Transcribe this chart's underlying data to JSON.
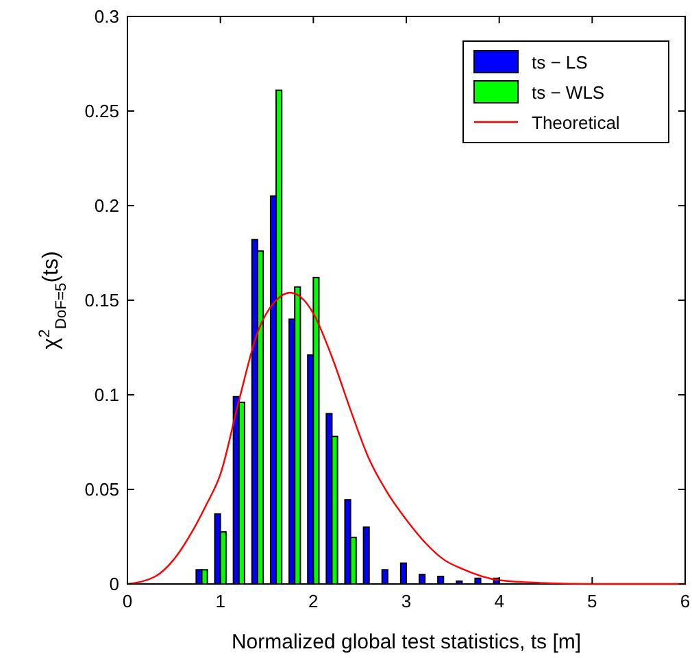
{
  "chart_data": {
    "type": "bar",
    "xlabel": "Normalized global test statistics, ts [m]",
    "ylabel": "χ$^{2}$$_{DoF=5}$(ts)",
    "x": [
      0.8,
      1.0,
      1.2,
      1.4,
      1.6,
      1.8,
      2.0,
      2.2,
      2.4,
      2.6,
      2.8,
      3.0,
      3.2,
      3.4,
      3.6,
      3.8,
      4.0
    ],
    "series": [
      {
        "name": "ts − LS",
        "color": "#0000ff",
        "values": [
          0.0075,
          0.037,
          0.099,
          0.182,
          0.205,
          0.14,
          0.121,
          0.09,
          0.0445,
          0.03,
          0.0075,
          0.011,
          0.005,
          0.004,
          0.0015,
          0.003,
          0.003
        ]
      },
      {
        "name": "ts − WLS",
        "color": "#00ff00",
        "values": [
          0.0075,
          0.0275,
          0.096,
          0.176,
          0.261,
          0.157,
          0.162,
          0.078,
          0.0246,
          0,
          0,
          0,
          0,
          0,
          0,
          0,
          0
        ]
      },
      {
        "name": "Theoretical",
        "type": "line",
        "color": "#ff0000",
        "x": [
          0,
          0.3,
          0.5,
          0.7,
          0.85,
          1.0,
          1.2,
          1.4,
          1.6,
          1.75,
          1.9,
          2.0,
          2.2,
          2.4,
          2.6,
          2.8,
          3.0,
          3.2,
          3.4,
          3.6,
          4.0,
          4.5,
          5.0,
          6.0
        ],
        "values": [
          0,
          0.004,
          0.013,
          0.028,
          0.042,
          0.058,
          0.097,
          0.133,
          0.15,
          0.154,
          0.15,
          0.143,
          0.12,
          0.092,
          0.066,
          0.048,
          0.034,
          0.022,
          0.013,
          0.008,
          0.002,
          0.0005,
          0,
          0
        ]
      }
    ],
    "xlim": [
      0,
      6
    ],
    "xticks": [
      0,
      1,
      2,
      3,
      4,
      5,
      6
    ],
    "ylim": [
      0,
      0.3
    ],
    "yticks": [
      0,
      0.05,
      0.1,
      0.15,
      0.2,
      0.25,
      0.3
    ],
    "grid": false,
    "legend": "top right"
  }
}
